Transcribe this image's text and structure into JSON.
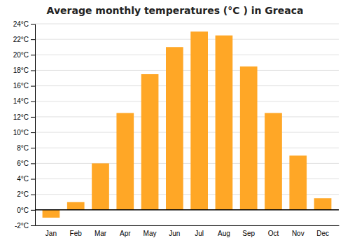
{
  "chart_data": {
    "type": "bar",
    "title": "Average monthly temperatures (°C ) in Greaca",
    "categories": [
      "Jan",
      "Feb",
      "Mar",
      "Apr",
      "May",
      "Jun",
      "Jul",
      "Aug",
      "Sep",
      "Oct",
      "Nov",
      "Dec"
    ],
    "values": [
      -1.0,
      1.0,
      6.0,
      12.5,
      17.5,
      21.0,
      23.0,
      22.5,
      18.5,
      12.5,
      7.0,
      1.5
    ],
    "color": "#FFA726",
    "ylim": [
      -2,
      24
    ],
    "yticks": [
      {
        "value": -2,
        "label": "-2°C"
      },
      {
        "value": 0,
        "label": "0°C"
      },
      {
        "value": 2,
        "label": "2°C"
      },
      {
        "value": 4,
        "label": "4°C"
      },
      {
        "value": 6,
        "label": "6°C"
      },
      {
        "value": 8,
        "label": "8°C"
      },
      {
        "value": 10,
        "label": "10°C"
      },
      {
        "value": 12,
        "label": "12°C"
      },
      {
        "value": 14,
        "label": "14°C"
      },
      {
        "value": 16,
        "label": "16°C"
      },
      {
        "value": 18,
        "label": "18°C"
      },
      {
        "value": 20,
        "label": "20°C"
      },
      {
        "value": 22,
        "label": "22°C"
      },
      {
        "value": 24,
        "label": "24°C"
      }
    ],
    "grid": true
  }
}
